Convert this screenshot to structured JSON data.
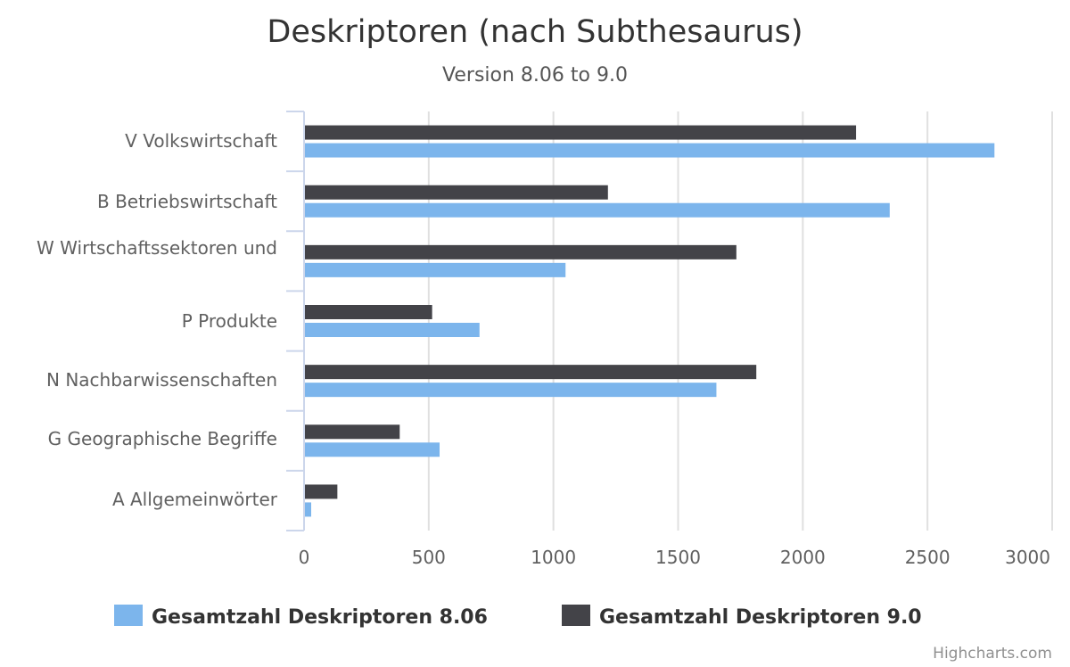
{
  "chart_data": {
    "type": "bar",
    "orientation": "horizontal",
    "title": "Deskriptoren (nach Subthesaurus)",
    "subtitle": "Version 8.06 to 9.0",
    "categories": [
      "V Volkswirtschaft",
      "B Betriebswirtschaft",
      "W Wirtschaftssektoren und",
      "P Produkte",
      "N Nachbarwissenschaften",
      "G Geographische Begriffe",
      "A Allgemeinwörter"
    ],
    "series": [
      {
        "name": "Gesamtzahl Deskriptoren 8.06",
        "color": "#7cb5ec",
        "values": [
          2765,
          2345,
          1045,
          700,
          1650,
          540,
          25
        ]
      },
      {
        "name": "Gesamtzahl Deskriptoren 9.0",
        "color": "#434348",
        "values": [
          2210,
          1215,
          1730,
          510,
          1810,
          380,
          130
        ]
      }
    ],
    "xticks": [
      "0",
      "500",
      "1000",
      "1500",
      "2000",
      "2500",
      "3000"
    ],
    "xlim": [
      0,
      3000
    ],
    "grid": true,
    "legend_position": "bottom"
  },
  "credits": "Highcharts.com"
}
